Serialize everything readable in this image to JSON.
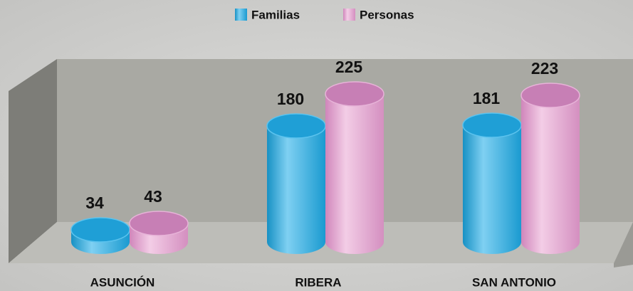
{
  "chart_data": {
    "type": "bar",
    "categories": [
      "ASUNCIÓN",
      "RIBERA",
      "SAN ANTONIO"
    ],
    "series": [
      {
        "name": "Familias",
        "color": "#1ea6dc",
        "values": [
          34,
          180,
          181
        ]
      },
      {
        "name": "Personas",
        "color": "#e3a5d0",
        "values": [
          43,
          225,
          223
        ]
      }
    ],
    "legend": "top"
  }
}
